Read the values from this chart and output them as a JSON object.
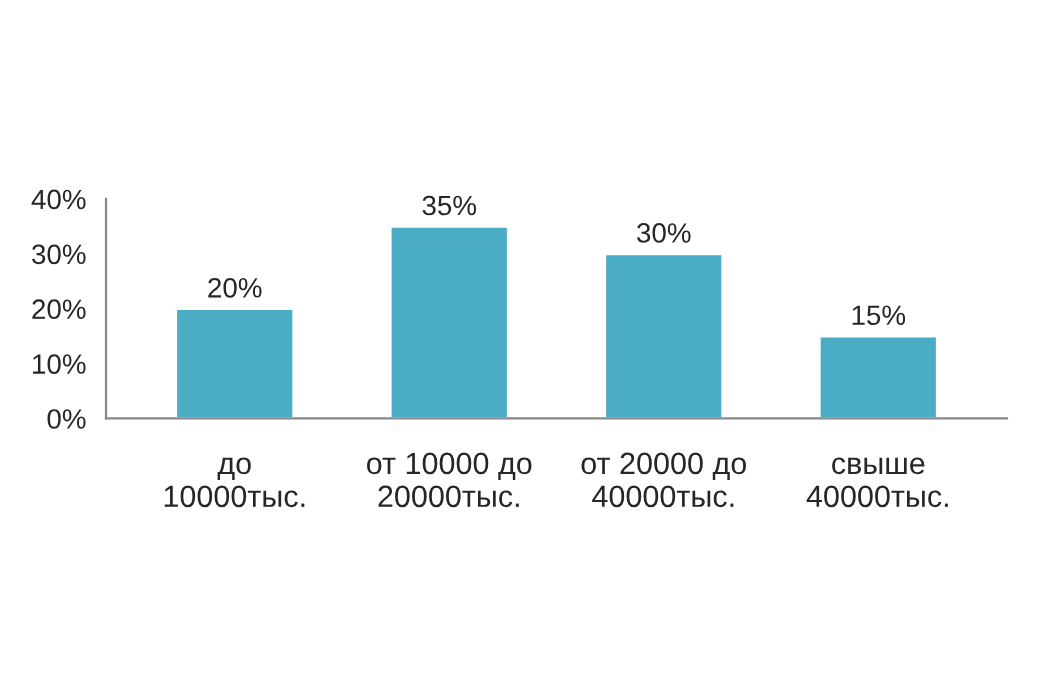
{
  "chart_data": {
    "type": "bar",
    "categories": [
      "до 10000тыс.",
      "от 10000 до 20000тыс.",
      "от 20000 до 40000тыс.",
      "свыше 40000тыс."
    ],
    "values": [
      20,
      35,
      30,
      15
    ],
    "value_labels": [
      "20%",
      "35%",
      "30%",
      "15%"
    ],
    "color": "#4bacc6",
    "ylim": [
      0,
      40
    ],
    "yticks": [
      {
        "value": 0,
        "label": "0%"
      },
      {
        "value": 10,
        "label": "10%"
      },
      {
        "value": 20,
        "label": "20%"
      },
      {
        "value": 30,
        "label": "30%"
      },
      {
        "value": 40,
        "label": "40%"
      }
    ],
    "grid": false,
    "legend": false
  }
}
